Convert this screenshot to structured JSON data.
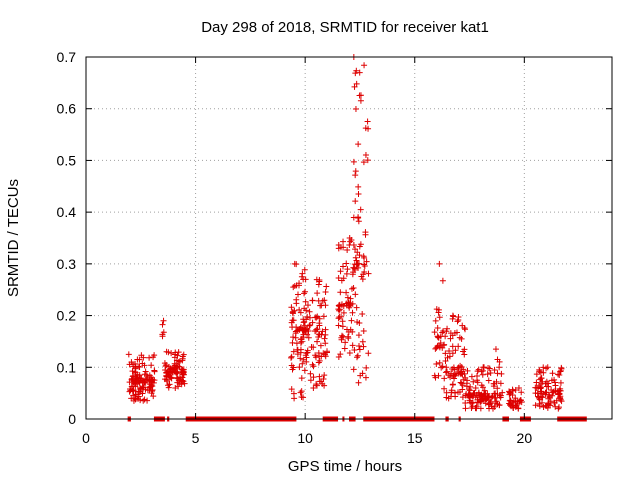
{
  "chart_data": {
    "type": "scatter",
    "title": "Day 298 of 2018, SRMTID for receiver kat1",
    "xlabel": "GPS time / hours",
    "ylabel": "SRMTID / TECUs",
    "xlim": [
      0,
      24
    ],
    "ylim": [
      0,
      0.7
    ],
    "x_ticks": [
      0,
      5,
      10,
      15,
      20
    ],
    "x_tick_labels": [
      "0",
      "5",
      "10",
      "15",
      "20"
    ],
    "y_ticks": [
      0,
      0.1,
      0.2,
      0.3,
      0.4,
      0.5,
      0.6,
      0.7
    ],
    "y_tick_labels": [
      "0",
      "0.1",
      "0.2",
      "0.3",
      "0.4",
      "0.5",
      "0.6",
      "0.7"
    ],
    "grid": true,
    "marker": "+",
    "colors": {
      "series": "#dd0000",
      "grid": "#a0a0a0",
      "axis": "#000000"
    },
    "series": [
      {
        "name": "SRMTID",
        "clusters": [
          {
            "x_start": 1.95,
            "x_end": 3.15,
            "y_min": 0.035,
            "y_max": 0.125,
            "y_mean": 0.075,
            "count": 120
          },
          {
            "x_start": 3.4,
            "x_end": 3.6,
            "y_min": 0.16,
            "y_max": 0.19,
            "y_mean": 0.172,
            "count": 5
          },
          {
            "x_start": 3.6,
            "x_end": 4.5,
            "y_min": 0.06,
            "y_max": 0.13,
            "y_mean": 0.09,
            "count": 90
          },
          {
            "x_start": 9.35,
            "x_end": 10.0,
            "y_min": 0.04,
            "y_max": 0.3,
            "y_mean": 0.17,
            "count": 80
          },
          {
            "x_start": 10.0,
            "x_end": 11.0,
            "y_min": 0.06,
            "y_max": 0.27,
            "y_mean": 0.17,
            "count": 90
          },
          {
            "x_start": 11.5,
            "x_end": 12.2,
            "y_min": 0.12,
            "y_max": 0.35,
            "y_mean": 0.22,
            "count": 70
          },
          {
            "x_start": 12.2,
            "x_end": 12.9,
            "y_min": 0.07,
            "y_max": 0.7,
            "y_mean": 0.3,
            "count": 80
          },
          {
            "x_start": 15.9,
            "x_end": 16.3,
            "y_min": 0.08,
            "y_max": 0.3,
            "y_mean": 0.16,
            "count": 30
          },
          {
            "x_start": 16.3,
            "x_end": 17.3,
            "y_min": 0.04,
            "y_max": 0.2,
            "y_mean": 0.09,
            "count": 80
          },
          {
            "x_start": 17.3,
            "x_end": 19.0,
            "y_min": 0.02,
            "y_max": 0.1,
            "y_mean": 0.045,
            "count": 130
          },
          {
            "x_start": 18.7,
            "x_end": 18.9,
            "y_min": 0.1,
            "y_max": 0.135,
            "y_mean": 0.115,
            "count": 4
          },
          {
            "x_start": 19.3,
            "x_end": 19.9,
            "y_min": 0.02,
            "y_max": 0.06,
            "y_mean": 0.035,
            "count": 40
          },
          {
            "x_start": 20.5,
            "x_end": 21.7,
            "y_min": 0.02,
            "y_max": 0.1,
            "y_mean": 0.05,
            "count": 100
          }
        ],
        "baseline_segments": [
          [
            1.9,
            2.05
          ],
          [
            3.1,
            3.6
          ],
          [
            3.7,
            3.8
          ],
          [
            4.55,
            9.6
          ],
          [
            10.8,
            11.5
          ],
          [
            11.7,
            11.75
          ],
          [
            12.0,
            12.3
          ],
          [
            12.65,
            15.9
          ],
          [
            16.4,
            16.55
          ],
          [
            17.0,
            17.1
          ],
          [
            19.0,
            19.3
          ],
          [
            19.8,
            20.3
          ],
          [
            21.5,
            22.85
          ]
        ]
      }
    ]
  }
}
